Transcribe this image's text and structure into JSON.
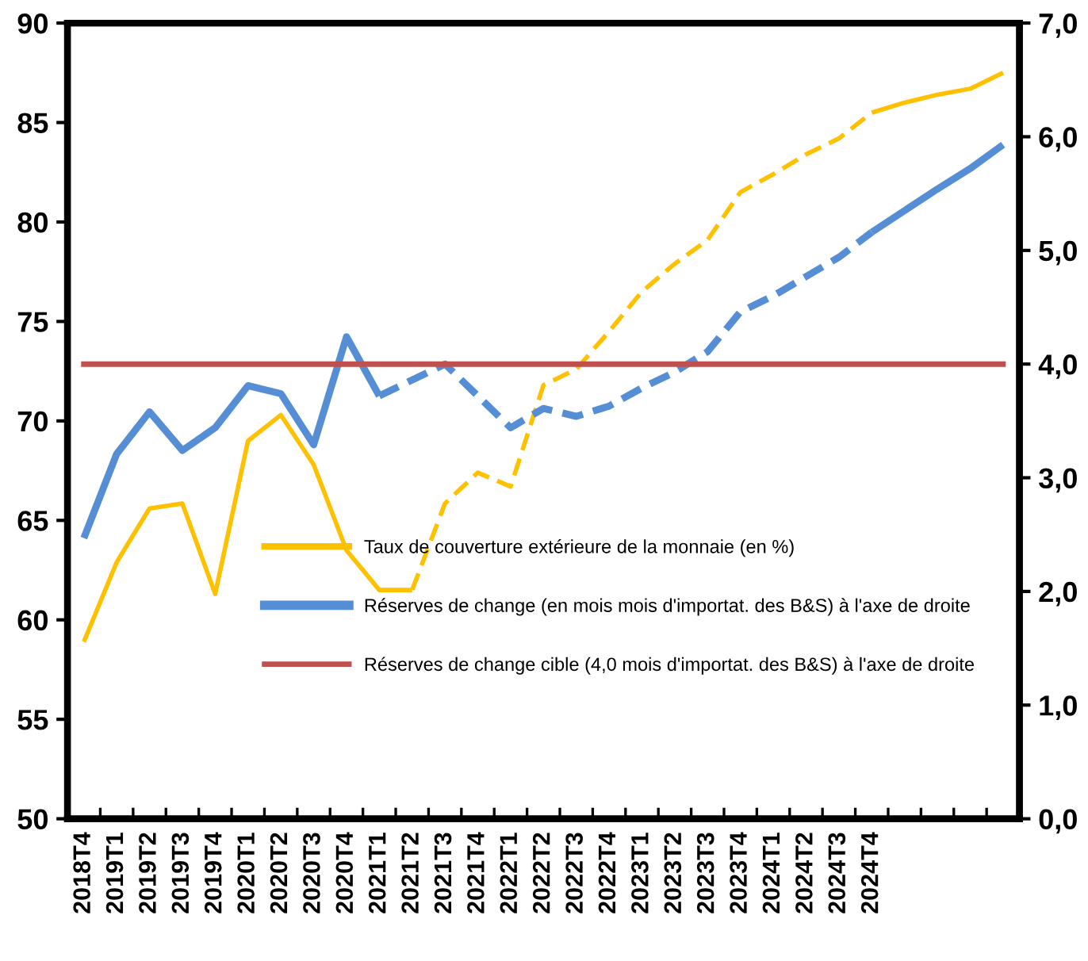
{
  "chart_data": {
    "type": "line",
    "categories": [
      "2018T4",
      "2019T1",
      "2019T2",
      "2019T3",
      "2019T4",
      "2020T1",
      "2020T2",
      "2020T3",
      "2020T4",
      "2021T1",
      "2021T2",
      "2021T3",
      "2021T4",
      "2022T1",
      "2022T2",
      "2022T3",
      "2022T4",
      "2023T1",
      "2023T2",
      "2023T3",
      "2023T4",
      "2024T1",
      "2024T2",
      "2024T3",
      "2024T4",
      null,
      null,
      null,
      null
    ],
    "series": [
      {
        "name": "Taux de couverture extérieure de la monnaie (en %)",
        "color": "#ffc000",
        "line_style": "solid",
        "values": [
          58.9,
          62.9,
          65.6,
          65.85,
          61.3,
          69.0,
          70.3,
          67.8,
          63.5,
          61.5,
          61.5,
          null,
          null,
          null,
          null,
          null,
          null,
          null,
          null,
          null,
          null,
          null,
          null,
          null,
          null,
          null,
          null,
          null,
          null
        ]
      },
      {
        "color": "#ffc000",
        "line_style": "dashed",
        "values": [
          null,
          null,
          null,
          null,
          null,
          null,
          null,
          null,
          null,
          null,
          61.5,
          65.85,
          67.4,
          66.7,
          71.8,
          72.6,
          74.5,
          76.5,
          77.9,
          79.1,
          81.5,
          82.4,
          83.4,
          84.2,
          85.5,
          null,
          null,
          null,
          null
        ]
      },
      {
        "color": "#ffc000",
        "line_style": "solid",
        "values": [
          null,
          null,
          null,
          null,
          null,
          null,
          null,
          null,
          null,
          null,
          null,
          null,
          null,
          null,
          null,
          null,
          null,
          null,
          null,
          null,
          null,
          null,
          null,
          null,
          85.5,
          86.0,
          86.4,
          86.7,
          87.5
        ]
      },
      {
        "name": "Réserves de change (en mois mois d'importat. des B&S) à l'axe de droite",
        "color": "#558ed5",
        "axis": "y2",
        "line_style": "solid",
        "values": [
          2.47,
          3.21,
          3.58,
          3.24,
          3.44,
          3.81,
          3.74,
          3.29,
          4.24,
          3.72,
          null,
          null,
          null,
          null,
          null,
          null,
          null,
          null,
          null,
          null,
          null,
          null,
          null,
          null,
          null,
          null,
          null,
          null,
          null
        ]
      },
      {
        "color": "#558ed5",
        "axis": "y2",
        "line_style": "dashed",
        "values": [
          null,
          null,
          null,
          null,
          null,
          null,
          null,
          null,
          null,
          3.72,
          3.86,
          4.0,
          3.72,
          3.44,
          3.61,
          3.54,
          3.63,
          3.79,
          3.93,
          4.11,
          4.46,
          4.6,
          4.77,
          4.94,
          5.16,
          null,
          null,
          null,
          null
        ]
      },
      {
        "color": "#558ed5",
        "axis": "y2",
        "line_style": "solid",
        "values": [
          null,
          null,
          null,
          null,
          null,
          null,
          null,
          null,
          null,
          null,
          null,
          null,
          null,
          null,
          null,
          null,
          null,
          null,
          null,
          null,
          null,
          null,
          null,
          null,
          5.16,
          5.35,
          5.54,
          5.72,
          5.93
        ]
      }
    ],
    "ref_lines": [
      {
        "axis": "y2",
        "value": 4.0,
        "label": "Réserves de change cible (4,0 mois d'importat. des B&S) à l'axe de droite",
        "color": "#c0504d"
      }
    ],
    "ylim": [
      50,
      90
    ],
    "yticks": [
      50,
      55,
      60,
      65,
      70,
      75,
      80,
      85,
      90
    ],
    "y2lim": [
      0,
      7
    ],
    "y2ticks": [
      {
        "value": 0,
        "label": "0,0"
      },
      {
        "value": 1,
        "label": "1,0"
      },
      {
        "value": 2,
        "label": "2,0"
      },
      {
        "value": 3,
        "label": "3,0"
      },
      {
        "value": 4,
        "label": "4,0"
      },
      {
        "value": 5,
        "label": "5,0"
      },
      {
        "value": 6,
        "label": "6,0"
      },
      {
        "value": 7,
        "label": "7,0"
      }
    ],
    "grid": false,
    "legend": "bottom",
    "marker": "none"
  }
}
